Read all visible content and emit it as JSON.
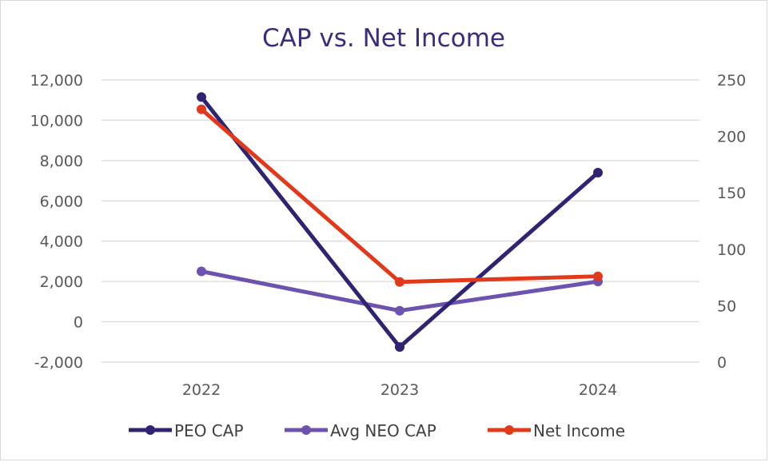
{
  "chart_data": {
    "type": "line",
    "title": "CAP vs. Net Income",
    "title_color": "#3a2d7e",
    "categories": [
      "2022",
      "2023",
      "2024"
    ],
    "y_left": {
      "ylim": [
        -2000,
        12000
      ],
      "ticks": [
        -2000,
        0,
        2000,
        4000,
        6000,
        8000,
        10000,
        12000
      ],
      "tick_labels": [
        "-2,000",
        "0",
        "2,000",
        "4,000",
        "6,000",
        "8,000",
        "10,000",
        "12,000"
      ]
    },
    "y_right": {
      "ylim": [
        0,
        250
      ],
      "ticks": [
        0,
        50,
        100,
        150,
        200,
        250
      ],
      "tick_labels": [
        "0",
        "50",
        "100",
        "150",
        "200",
        "250"
      ]
    },
    "grid": true,
    "legend_position": "bottom",
    "series": [
      {
        "name": "PEO CAP",
        "axis": "left",
        "color": "#2e2472",
        "values": [
          11150,
          -1250,
          7400
        ]
      },
      {
        "name": "Avg NEO CAP",
        "axis": "left",
        "color": "#6e52b0",
        "values": [
          2500,
          550,
          2000
        ]
      },
      {
        "name": "Net Income",
        "axis": "right",
        "color": "#e0391c",
        "values": [
          224,
          71,
          76
        ]
      }
    ]
  }
}
